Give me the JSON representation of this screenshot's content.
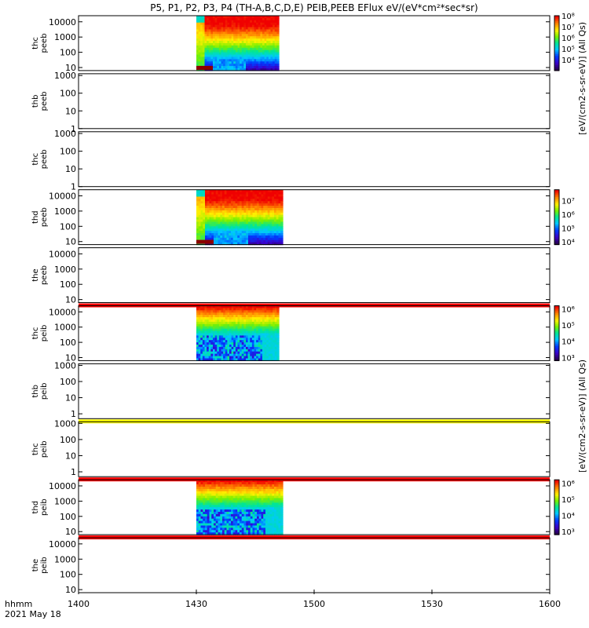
{
  "chart_data": {
    "type": "heatmap",
    "title": "P5, P1, P2, P3, P4 (TH-A,B,C,D,E) PEIB,PEEB EFlux eV/(eV*cm²*sec*sr)",
    "x_axis": {
      "label_line1": "hhmm",
      "label_line2": "2021 May 18",
      "ticks": [
        "1400",
        "1430",
        "1500",
        "1530",
        "1600"
      ],
      "tick_values_min": [
        0,
        30,
        60,
        90,
        120
      ],
      "range_min": [
        0,
        120
      ]
    },
    "colorbar_units_electron": "[eV/(cm2-s-sr-eV)] (All Qs)",
    "colorbar_units_ion": "[eV/(cm2-s-sr-eV)] (All Qs)",
    "panels": [
      {
        "label": [
          "thc",
          "peeb"
        ],
        "yticks": [
          "10000",
          "1000",
          "100",
          "10"
        ],
        "ylog": [
          4,
          3,
          2,
          1
        ],
        "yrange_log": [
          0.8,
          4.4
        ],
        "has_data": true,
        "data_start_min": 30,
        "data_end_min": 51,
        "kind": "electron",
        "colorbar": {
          "ticks": [
            "10⁸",
            "10⁷",
            "10⁶",
            "10⁵",
            "10⁴"
          ],
          "exp": [
            8,
            7,
            6,
            5,
            4
          ],
          "range_exp": [
            3,
            8
          ]
        }
      },
      {
        "label": [
          "thb",
          "peeb"
        ],
        "yticks": [
          "1000",
          "100",
          "10",
          "1"
        ],
        "ylog": [
          3,
          2,
          1,
          0
        ],
        "yrange_log": [
          0,
          3.1
        ],
        "has_data": false
      },
      {
        "label": [
          "thc",
          "peeb"
        ],
        "yticks": [
          "1000",
          "100",
          "10",
          "1"
        ],
        "ylog": [
          3,
          2,
          1,
          0
        ],
        "yrange_log": [
          0,
          3.1
        ],
        "has_data": false
      },
      {
        "label": [
          "thd",
          "peeb"
        ],
        "yticks": [
          "10000",
          "1000",
          "100",
          "10"
        ],
        "ylog": [
          4,
          3,
          2,
          1
        ],
        "yrange_log": [
          0.8,
          4.4
        ],
        "has_data": true,
        "data_start_min": 30,
        "data_end_min": 52,
        "kind": "electron",
        "colorbar": {
          "ticks": [
            "10⁷",
            "10⁶",
            "10⁵",
            "10⁴"
          ],
          "exp": [
            7,
            6,
            5,
            4
          ],
          "range_exp": [
            3.8,
            7.8
          ]
        }
      },
      {
        "label": [
          "the",
          "peeb"
        ],
        "yticks": [
          "10000",
          "1000",
          "100",
          "10"
        ],
        "ylog": [
          4,
          3,
          2,
          1
        ],
        "yrange_log": [
          0.8,
          4.4
        ],
        "has_data": false,
        "bottom_band": "red"
      },
      {
        "label": [
          "thc",
          "peib"
        ],
        "yticks": [
          "10000",
          "1000",
          "100",
          "10"
        ],
        "ylog": [
          4,
          3,
          2,
          1
        ],
        "yrange_log": [
          0.8,
          4.4
        ],
        "has_data": true,
        "data_start_min": 30,
        "data_end_min": 51,
        "kind": "ion",
        "colorbar": {
          "ticks": [
            "10⁶",
            "10⁵",
            "10⁴",
            "10³"
          ],
          "exp": [
            6,
            5,
            4,
            3
          ],
          "range_exp": [
            2.8,
            6.2
          ]
        }
      },
      {
        "label": [
          "thb",
          "peib"
        ],
        "yticks": [
          "1000",
          "100",
          "10",
          "1"
        ],
        "ylog": [
          3,
          2,
          1,
          0
        ],
        "yrange_log": [
          -0.3,
          3.1
        ],
        "has_data": false,
        "bottom_band": "yellow"
      },
      {
        "label": [
          "thc",
          "peib"
        ],
        "yticks": [
          "1000",
          "100",
          "10",
          "1"
        ],
        "ylog": [
          3,
          2,
          1,
          0
        ],
        "yrange_log": [
          -0.3,
          3.1
        ],
        "has_data": false,
        "bottom_band": "red"
      },
      {
        "label": [
          "thd",
          "peib"
        ],
        "yticks": [
          "10000",
          "1000",
          "100",
          "10"
        ],
        "ylog": [
          4,
          3,
          2,
          1
        ],
        "yrange_log": [
          0.8,
          4.4
        ],
        "has_data": true,
        "data_start_min": 30,
        "data_end_min": 52,
        "kind": "ion",
        "colorbar": {
          "ticks": [
            "10⁶",
            "10⁵",
            "10⁴",
            "10³"
          ],
          "exp": [
            6,
            5,
            4,
            3
          ],
          "range_exp": [
            2.8,
            6.2
          ]
        },
        "bottom_band": "red"
      },
      {
        "label": [
          "the",
          "peib"
        ],
        "yticks": [
          "10000",
          "1000",
          "100",
          "10"
        ],
        "ylog": [
          4,
          3,
          2,
          1
        ],
        "yrange_log": [
          0.8,
          4.4
        ],
        "has_data": false
      }
    ],
    "colors": {
      "red": "#ff0000",
      "yellow": "#ffff00",
      "frame": "#000000"
    }
  }
}
